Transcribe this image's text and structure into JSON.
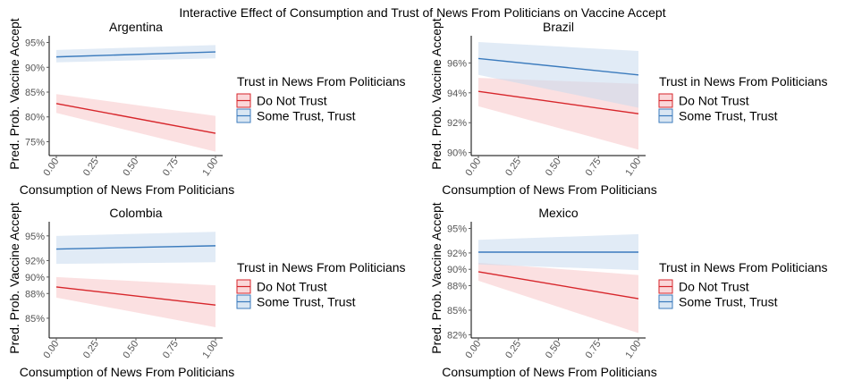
{
  "title": "Interactive Effect of Consumption and Trust of News From Politicians on Vaccine Accept",
  "colors": {
    "no_trust_line": "#d7262b",
    "no_trust_fill": "#f8c6c9",
    "trust_line": "#3b7bbd",
    "trust_fill": "#c9dbee"
  },
  "chart_data": [
    {
      "type": "line",
      "title": "Argentina",
      "xlabel": "Consumption of News From Politicians",
      "ylabel": "Pred. Prob. Vaccine Accept",
      "xlim": [
        0,
        1
      ],
      "ylim": [
        72.2,
        96.0
      ],
      "x_ticks": [
        "0.00",
        "0.25",
        "0.50",
        "0.75",
        "1.00"
      ],
      "y_ticks": [
        {
          "value": 75,
          "label": "75%"
        },
        {
          "value": 80,
          "label": "80%"
        },
        {
          "value": 85,
          "label": "85%"
        },
        {
          "value": 90,
          "label": "90%"
        },
        {
          "value": 95,
          "label": "95%"
        }
      ],
      "legend_title": "Trust in News From Politicians",
      "legend_position": "right",
      "series": [
        {
          "name": "Do Not Trust",
          "x": [
            0,
            1
          ],
          "y": [
            82.7,
            76.7
          ],
          "lower": [
            80.8,
            73.0
          ],
          "upper": [
            84.6,
            80.2
          ]
        },
        {
          "name": "Some Trust, Trust",
          "x": [
            0,
            1
          ],
          "y": [
            92.1,
            93.1
          ],
          "lower": [
            91.0,
            91.8
          ],
          "upper": [
            93.5,
            94.5
          ]
        }
      ]
    },
    {
      "type": "line",
      "title": "Brazil",
      "xlabel": "Consumption of News From Politicians",
      "ylabel": "Pred. Prob. Vaccine Accept",
      "xlim": [
        0,
        1
      ],
      "ylim": [
        89.8,
        97.7
      ],
      "x_ticks": [
        "0.00",
        "0.25",
        "0.50",
        "0.75",
        "1.00"
      ],
      "y_ticks": [
        {
          "value": 90,
          "label": "90%"
        },
        {
          "value": 92,
          "label": "92%"
        },
        {
          "value": 94,
          "label": "94%"
        },
        {
          "value": 96,
          "label": "96%"
        }
      ],
      "legend_title": "Trust in News From Politicians",
      "legend_position": "right",
      "series": [
        {
          "name": "Do Not Trust",
          "x": [
            0,
            1
          ],
          "y": [
            94.1,
            92.6
          ],
          "lower": [
            93.1,
            90.2
          ],
          "upper": [
            95.0,
            94.6
          ]
        },
        {
          "name": "Some Trust, Trust",
          "x": [
            0,
            1
          ],
          "y": [
            96.3,
            95.2
          ],
          "lower": [
            95.2,
            93.0
          ],
          "upper": [
            97.4,
            96.8
          ]
        }
      ]
    },
    {
      "type": "line",
      "title": "Colombia",
      "xlabel": "Consumption of News From Politicians",
      "ylabel": "Pred. Prob. Vaccine Accept",
      "xlim": [
        0,
        1
      ],
      "ylim": [
        82.6,
        96.5
      ],
      "x_ticks": [
        "0.00",
        "0.25",
        "0.50",
        "0.75",
        "1.00"
      ],
      "y_ticks": [
        {
          "value": 85,
          "label": "85%"
        },
        {
          "value": 88,
          "label": "88%"
        },
        {
          "value": 90,
          "label": "90%"
        },
        {
          "value": 92,
          "label": "92%"
        },
        {
          "value": 95,
          "label": "95%"
        }
      ],
      "legend_title": "Trust in News From Politicians",
      "legend_position": "right",
      "series": [
        {
          "name": "Do Not Trust",
          "x": [
            0,
            1
          ],
          "y": [
            88.8,
            86.6
          ],
          "lower": [
            87.5,
            83.9
          ],
          "upper": [
            90.0,
            89.0
          ]
        },
        {
          "name": "Some Trust, Trust",
          "x": [
            0,
            1
          ],
          "y": [
            93.4,
            93.8
          ],
          "lower": [
            91.6,
            91.8
          ],
          "upper": [
            95.0,
            95.5
          ]
        }
      ]
    },
    {
      "type": "line",
      "title": "Mexico",
      "xlabel": "Consumption of News From Politicians",
      "ylabel": "Pred. Prob. Vaccine Accept",
      "xlim": [
        0,
        1
      ],
      "ylim": [
        81.6,
        95.6
      ],
      "x_ticks": [
        "0.00",
        "0.25",
        "0.50",
        "0.75",
        "1.00"
      ],
      "y_ticks": [
        {
          "value": 82,
          "label": "82%"
        },
        {
          "value": 85,
          "label": "85%"
        },
        {
          "value": 88,
          "label": "88%"
        },
        {
          "value": 90,
          "label": "90%"
        },
        {
          "value": 92,
          "label": "92%"
        },
        {
          "value": 95,
          "label": "95%"
        }
      ],
      "legend_title": "Trust in News From Politicians",
      "legend_position": "right",
      "series": [
        {
          "name": "Do Not Trust",
          "x": [
            0,
            1
          ],
          "y": [
            89.7,
            86.4
          ],
          "lower": [
            88.6,
            82.2
          ],
          "upper": [
            90.8,
            89.3
          ]
        },
        {
          "name": "Some Trust, Trust",
          "x": [
            0,
            1
          ],
          "y": [
            92.1,
            92.1
          ],
          "lower": [
            90.6,
            89.9
          ],
          "upper": [
            93.6,
            94.3
          ]
        }
      ]
    }
  ]
}
